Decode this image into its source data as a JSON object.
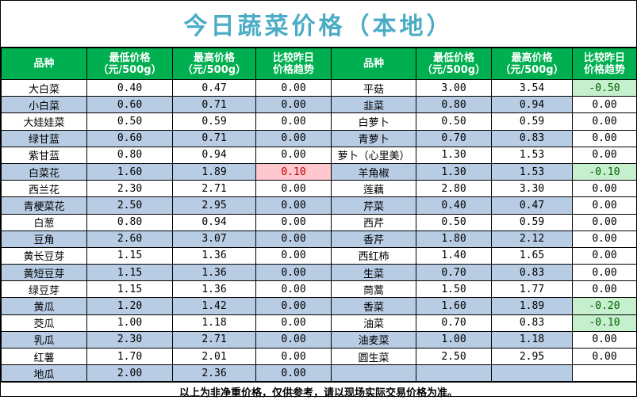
{
  "title": "今日蔬菜价格（本地）",
  "headers": {
    "name": "品种",
    "min_price": [
      "最低价格",
      "（元/500g）"
    ],
    "max_price": [
      "最高价格",
      "（元/500g）"
    ],
    "trend": [
      "比较昨日",
      "价格趋势"
    ]
  },
  "left": [
    {
      "name": "大白菜",
      "min": "0.40",
      "max": "0.47",
      "chg": "0.00"
    },
    {
      "name": "小白菜",
      "min": "0.60",
      "max": "0.71",
      "chg": "0.00"
    },
    {
      "name": "大娃娃菜",
      "min": "0.50",
      "max": "0.59",
      "chg": "0.00"
    },
    {
      "name": "绿甘蓝",
      "min": "0.60",
      "max": "0.71",
      "chg": "0.00"
    },
    {
      "name": "紫甘蓝",
      "min": "0.80",
      "max": "0.94",
      "chg": "0.00"
    },
    {
      "name": "白菜花",
      "min": "1.60",
      "max": "1.89",
      "chg": "0.10",
      "trend": "up"
    },
    {
      "name": "西兰花",
      "min": "2.30",
      "max": "2.71",
      "chg": "0.00"
    },
    {
      "name": "青梗菜花",
      "min": "2.50",
      "max": "2.95",
      "chg": "0.00"
    },
    {
      "name": "白葱",
      "min": "0.80",
      "max": "0.94",
      "chg": "0.00"
    },
    {
      "name": "豆角",
      "min": "2.60",
      "max": "3.07",
      "chg": "0.00"
    },
    {
      "name": "黄长豆芽",
      "min": "1.15",
      "max": "1.36",
      "chg": "0.00"
    },
    {
      "name": "黄短豆芽",
      "min": "1.15",
      "max": "1.36",
      "chg": "0.00"
    },
    {
      "name": "绿豆芽",
      "min": "1.15",
      "max": "1.36",
      "chg": "0.00"
    },
    {
      "name": "黄瓜",
      "min": "1.20",
      "max": "1.42",
      "chg": "0.00"
    },
    {
      "name": "茭瓜",
      "min": "1.00",
      "max": "1.18",
      "chg": "0.00"
    },
    {
      "name": "乳瓜",
      "min": "2.30",
      "max": "2.71",
      "chg": "0.00"
    },
    {
      "name": "红薯",
      "min": "1.70",
      "max": "2.01",
      "chg": "0.00"
    },
    {
      "name": "地瓜",
      "min": "2.00",
      "max": "2.36",
      "chg": "0.00"
    }
  ],
  "right": [
    {
      "name": "平菇",
      "min": "3.00",
      "max": "3.54",
      "chg": "-0.50",
      "trend": "down"
    },
    {
      "name": "韭菜",
      "min": "0.80",
      "max": "0.94",
      "chg": "0.00"
    },
    {
      "name": "白萝卜",
      "min": "0.50",
      "max": "0.59",
      "chg": "0.00"
    },
    {
      "name": "青萝卜",
      "min": "0.70",
      "max": "0.83",
      "chg": "0.00"
    },
    {
      "name": "萝卜（心里美）",
      "min": "1.30",
      "max": "1.53",
      "chg": "0.00"
    },
    {
      "name": "羊角椒",
      "min": "1.30",
      "max": "1.53",
      "chg": "-0.10",
      "trend": "down"
    },
    {
      "name": "莲藕",
      "min": "2.80",
      "max": "3.30",
      "chg": "0.00"
    },
    {
      "name": "芹菜",
      "min": "0.40",
      "max": "0.47",
      "chg": "0.00"
    },
    {
      "name": "西芹",
      "min": "0.50",
      "max": "0.59",
      "chg": "0.00"
    },
    {
      "name": "香芹",
      "min": "1.80",
      "max": "2.12",
      "chg": "0.00"
    },
    {
      "name": "西红柿",
      "min": "1.40",
      "max": "1.65",
      "chg": "0.00"
    },
    {
      "name": "生菜",
      "min": "0.70",
      "max": "0.83",
      "chg": "0.00"
    },
    {
      "name": "茼蒿",
      "min": "1.50",
      "max": "1.77",
      "chg": "0.00"
    },
    {
      "name": "香菜",
      "min": "1.60",
      "max": "1.89",
      "chg": "-0.20",
      "trend": "down"
    },
    {
      "name": "油菜",
      "min": "0.70",
      "max": "0.83",
      "chg": "-0.10",
      "trend": "down"
    },
    {
      "name": "油麦菜",
      "min": "1.00",
      "max": "1.18",
      "chg": "0.00"
    },
    {
      "name": "圆生菜",
      "min": "2.50",
      "max": "2.95",
      "chg": "0.00"
    },
    {
      "name": "",
      "min": "",
      "max": "",
      "chg": ""
    }
  ],
  "footer": "以上为非净重价格，仅供参考，请以现场实际交易价格为准。"
}
